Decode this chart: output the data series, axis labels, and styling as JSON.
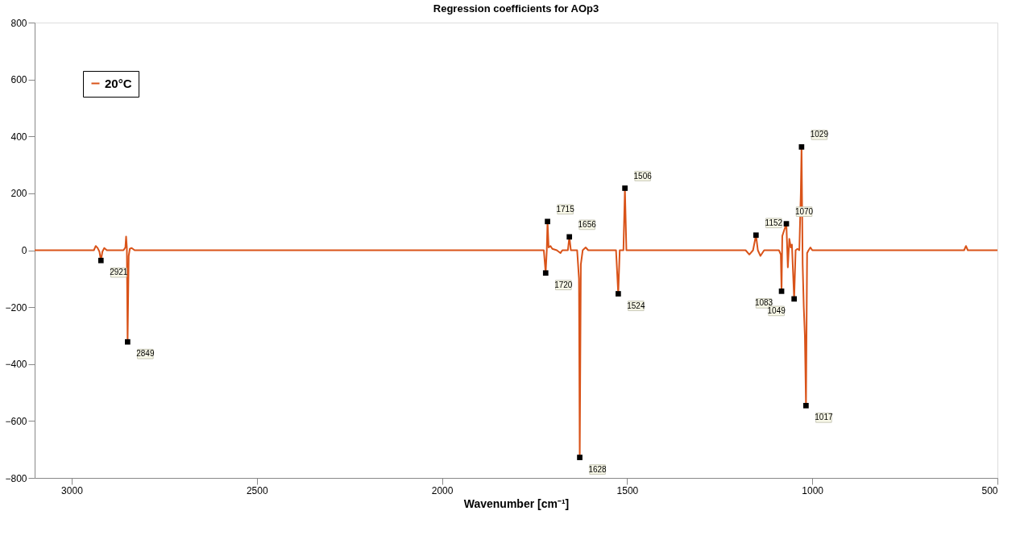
{
  "chart_data": {
    "type": "line",
    "title": "Regression coefficients for AOp3",
    "xlabel": "Wavenumber [cm⁻¹]",
    "xlim": [
      3100,
      500
    ],
    "xticks": [
      3000,
      2500,
      2000,
      1500,
      1000,
      500
    ],
    "ylim": [
      -800,
      800
    ],
    "yticks": [
      -800,
      -600,
      -400,
      -200,
      0,
      200,
      400,
      600,
      800
    ],
    "grid": false,
    "legend": "top left",
    "series": [
      {
        "name": "20°C",
        "color": "#d95319",
        "type": "line",
        "marker": "none",
        "line_style": "solid",
        "x": [
          3100,
          2940,
          2935,
          2930,
          2925,
          2921,
          2917,
          2912,
          2905,
          2860,
          2855,
          2853,
          2851,
          2849,
          2846,
          2843,
          2838,
          2830,
          1760,
          1725,
          1720,
          1717,
          1715,
          1712,
          1707,
          1702,
          1690,
          1680,
          1675,
          1660,
          1656,
          1652,
          1635,
          1630,
          1628,
          1625,
          1620,
          1612,
          1605,
          1530,
          1524,
          1520,
          1510,
          1506,
          1502,
          1180,
          1170,
          1160,
          1152,
          1147,
          1140,
          1130,
          1090,
          1085,
          1083,
          1081,
          1076,
          1070,
          1066,
          1062,
          1058,
          1055,
          1049,
          1045,
          1040,
          1035,
          1031,
          1029,
          1026,
          1023,
          1020,
          1017,
          1014,
          1010,
          1005,
          1000,
          590,
          585,
          580,
          500
        ],
        "values": [
          0,
          0,
          15,
          8,
          -5,
          -36,
          -5,
          8,
          0,
          0,
          10,
          48,
          10,
          -322,
          -20,
          5,
          8,
          0,
          0,
          0,
          -80,
          0,
          101,
          10,
          15,
          5,
          0,
          -10,
          0,
          0,
          47,
          0,
          0,
          -100,
          -728,
          -50,
          0,
          10,
          0,
          0,
          -153,
          0,
          0,
          218,
          0,
          0,
          -15,
          0,
          53,
          0,
          -20,
          0,
          0,
          -15,
          -144,
          50,
          70,
          93,
          -60,
          40,
          10,
          20,
          -171,
          0,
          5,
          0,
          200,
          363,
          -50,
          -200,
          -300,
          -546,
          -10,
          0,
          10,
          0,
          0,
          15,
          0,
          0
        ]
      },
      {
        "color": "#000000",
        "type": "scatter",
        "marker": "square",
        "x": [
          2921,
          2849,
          1720,
          1715,
          1656,
          1628,
          1524,
          1506,
          1152,
          1083,
          1070,
          1049,
          1029,
          1017
        ],
        "values": [
          -36,
          -322,
          -80,
          101,
          47,
          -728,
          -153,
          218,
          53,
          -144,
          93,
          -171,
          363,
          -546
        ]
      }
    ],
    "annotations": [
      {
        "text": "2921",
        "x": 2921,
        "y": -36
      },
      {
        "text": "2849",
        "x": 2849,
        "y": -322
      },
      {
        "text": "1720",
        "x": 1720,
        "y": -80
      },
      {
        "text": "1715",
        "x": 1715,
        "y": 101
      },
      {
        "text": "1656",
        "x": 1656,
        "y": 47
      },
      {
        "text": "1628",
        "x": 1628,
        "y": -728
      },
      {
        "text": "1524",
        "x": 1524,
        "y": -153
      },
      {
        "text": "1506",
        "x": 1506,
        "y": 218
      },
      {
        "text": "1152",
        "x": 1152,
        "y": 53
      },
      {
        "text": "1083",
        "x": 1083,
        "y": -144
      },
      {
        "text": "1070",
        "x": 1070,
        "y": 93
      },
      {
        "text": "1049",
        "x": 1049,
        "y": -171
      },
      {
        "text": "1029",
        "x": 1029,
        "y": 363
      },
      {
        "text": "1017",
        "x": 1017,
        "y": -546
      }
    ]
  }
}
